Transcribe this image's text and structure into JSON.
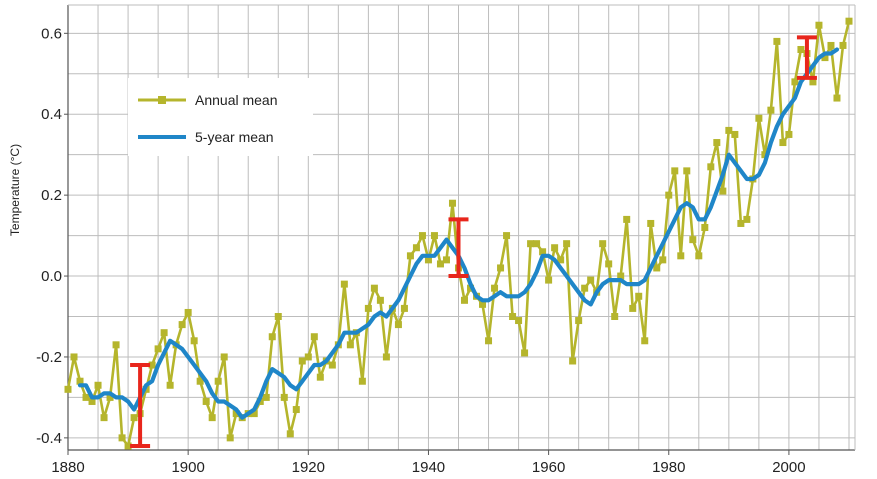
{
  "chart_data": {
    "type": "line",
    "title": "",
    "xlabel": "",
    "ylabel": "Temperature (°C)",
    "xlim": [
      1880,
      2011
    ],
    "ylim": [
      -0.43,
      0.67
    ],
    "grid": true,
    "legend_position": "upper-left",
    "xticks": [
      1880,
      1900,
      1920,
      1940,
      1960,
      1980,
      2000
    ],
    "xtick_labels": [
      "1880",
      "1900",
      "1920",
      "1940",
      "1960",
      "1980",
      "2000"
    ],
    "yticks": [
      -0.4,
      -0.2,
      0.0,
      0.2,
      0.4,
      0.6
    ],
    "ytick_labels": [
      "-0.4",
      "-0.2",
      "0.0",
      "0.2",
      "0.4",
      "0.6"
    ],
    "colors": {
      "annual": "#b5b52c",
      "five_year": "#1f86c8",
      "error_bar": "#e8261c",
      "grid": "#bdbdbd",
      "axis": "#555555"
    },
    "series": [
      {
        "name": "Annual mean",
        "marker": "square",
        "x": [
          1880,
          1881,
          1882,
          1883,
          1884,
          1885,
          1886,
          1887,
          1888,
          1889,
          1890,
          1891,
          1892,
          1893,
          1894,
          1895,
          1896,
          1897,
          1898,
          1899,
          1900,
          1901,
          1902,
          1903,
          1904,
          1905,
          1906,
          1907,
          1908,
          1909,
          1910,
          1911,
          1912,
          1913,
          1914,
          1915,
          1916,
          1917,
          1918,
          1919,
          1920,
          1921,
          1922,
          1923,
          1924,
          1925,
          1926,
          1927,
          1928,
          1929,
          1930,
          1931,
          1932,
          1933,
          1934,
          1935,
          1936,
          1937,
          1938,
          1939,
          1940,
          1941,
          1942,
          1943,
          1944,
          1945,
          1946,
          1947,
          1948,
          1949,
          1950,
          1951,
          1952,
          1953,
          1954,
          1955,
          1956,
          1957,
          1958,
          1959,
          1960,
          1961,
          1962,
          1963,
          1964,
          1965,
          1966,
          1967,
          1968,
          1969,
          1970,
          1971,
          1972,
          1973,
          1974,
          1975,
          1976,
          1977,
          1978,
          1979,
          1980,
          1981,
          1982,
          1983,
          1984,
          1985,
          1986,
          1987,
          1988,
          1989,
          1990,
          1991,
          1992,
          1993,
          1994,
          1995,
          1996,
          1997,
          1998,
          1999,
          2000,
          2001,
          2002,
          2003,
          2004,
          2005,
          2006,
          2007,
          2008,
          2009,
          2010
        ],
        "values": [
          -0.28,
          -0.2,
          -0.26,
          -0.3,
          -0.31,
          -0.27,
          -0.35,
          -0.3,
          -0.17,
          -0.4,
          -0.42,
          -0.35,
          -0.34,
          -0.28,
          -0.22,
          -0.18,
          -0.14,
          -0.27,
          -0.17,
          -0.12,
          -0.09,
          -0.16,
          -0.26,
          -0.31,
          -0.35,
          -0.26,
          -0.2,
          -0.4,
          -0.34,
          -0.35,
          -0.34,
          -0.34,
          -0.31,
          -0.3,
          -0.15,
          -0.1,
          -0.3,
          -0.39,
          -0.33,
          -0.21,
          -0.2,
          -0.15,
          -0.25,
          -0.21,
          -0.22,
          -0.17,
          -0.02,
          -0.17,
          -0.14,
          -0.26,
          -0.08,
          -0.03,
          -0.06,
          -0.2,
          -0.08,
          -0.12,
          -0.08,
          0.05,
          0.07,
          0.1,
          0.04,
          0.1,
          0.03,
          0.04,
          0.18,
          0.02,
          -0.06,
          -0.03,
          -0.05,
          -0.07,
          -0.16,
          -0.03,
          0.02,
          0.1,
          -0.1,
          -0.11,
          -0.19,
          0.08,
          0.08,
          0.06,
          -0.01,
          0.07,
          0.04,
          0.08,
          -0.21,
          -0.11,
          -0.03,
          -0.01,
          -0.04,
          0.08,
          0.03,
          -0.1,
          0.0,
          0.14,
          -0.08,
          -0.05,
          -0.16,
          0.13,
          0.02,
          0.04,
          0.2,
          0.26,
          0.05,
          0.26,
          0.09,
          0.05,
          0.12,
          0.27,
          0.33,
          0.21,
          0.36,
          0.35,
          0.13,
          0.14,
          0.24,
          0.39,
          0.3,
          0.41,
          0.58,
          0.33,
          0.35,
          0.48,
          0.56,
          0.55,
          0.48,
          0.62,
          0.54,
          0.57,
          0.44,
          0.57,
          0.63
        ]
      },
      {
        "name": "5-year mean",
        "x": [
          1882,
          1883,
          1884,
          1885,
          1886,
          1887,
          1888,
          1889,
          1890,
          1891,
          1892,
          1893,
          1894,
          1895,
          1896,
          1897,
          1898,
          1899,
          1900,
          1901,
          1902,
          1903,
          1904,
          1905,
          1906,
          1907,
          1908,
          1909,
          1910,
          1911,
          1912,
          1913,
          1914,
          1915,
          1916,
          1917,
          1918,
          1919,
          1920,
          1921,
          1922,
          1923,
          1924,
          1925,
          1926,
          1927,
          1928,
          1929,
          1930,
          1931,
          1932,
          1933,
          1934,
          1935,
          1936,
          1937,
          1938,
          1939,
          1940,
          1941,
          1942,
          1943,
          1944,
          1945,
          1946,
          1947,
          1948,
          1949,
          1950,
          1951,
          1952,
          1953,
          1954,
          1955,
          1956,
          1957,
          1958,
          1959,
          1960,
          1961,
          1962,
          1963,
          1964,
          1965,
          1966,
          1967,
          1968,
          1969,
          1970,
          1971,
          1972,
          1973,
          1974,
          1975,
          1976,
          1977,
          1978,
          1979,
          1980,
          1981,
          1982,
          1983,
          1984,
          1985,
          1986,
          1987,
          1988,
          1989,
          1990,
          1991,
          1992,
          1993,
          1994,
          1995,
          1996,
          1997,
          1998,
          1999,
          2000,
          2001,
          2002,
          2003,
          2004,
          2005,
          2006,
          2007,
          2008
        ],
        "values": [
          -0.27,
          -0.27,
          -0.3,
          -0.3,
          -0.29,
          -0.29,
          -0.3,
          -0.3,
          -0.31,
          -0.33,
          -0.3,
          -0.27,
          -0.26,
          -0.22,
          -0.19,
          -0.16,
          -0.17,
          -0.18,
          -0.2,
          -0.22,
          -0.24,
          -0.26,
          -0.29,
          -0.31,
          -0.31,
          -0.32,
          -0.33,
          -0.35,
          -0.34,
          -0.33,
          -0.3,
          -0.26,
          -0.23,
          -0.24,
          -0.25,
          -0.27,
          -0.28,
          -0.26,
          -0.24,
          -0.22,
          -0.22,
          -0.21,
          -0.19,
          -0.17,
          -0.14,
          -0.14,
          -0.14,
          -0.13,
          -0.12,
          -0.1,
          -0.09,
          -0.1,
          -0.08,
          -0.06,
          -0.03,
          0.0,
          0.03,
          0.05,
          0.05,
          0.05,
          0.07,
          0.09,
          0.07,
          0.05,
          0.02,
          -0.02,
          -0.05,
          -0.06,
          -0.06,
          -0.05,
          -0.04,
          -0.05,
          -0.05,
          -0.05,
          -0.04,
          -0.02,
          0.01,
          0.05,
          0.05,
          0.04,
          0.02,
          0.0,
          -0.02,
          -0.04,
          -0.06,
          -0.07,
          -0.04,
          -0.02,
          -0.01,
          -0.01,
          -0.01,
          -0.02,
          -0.02,
          -0.02,
          -0.01,
          0.02,
          0.05,
          0.08,
          0.11,
          0.14,
          0.17,
          0.18,
          0.17,
          0.14,
          0.14,
          0.17,
          0.21,
          0.25,
          0.3,
          0.28,
          0.26,
          0.24,
          0.24,
          0.25,
          0.28,
          0.33,
          0.37,
          0.4,
          0.42,
          0.44,
          0.48,
          0.5,
          0.52,
          0.54,
          0.55,
          0.55,
          0.56
        ]
      }
    ],
    "error_bars": [
      {
        "x": 1892,
        "low": -0.42,
        "high": -0.22
      },
      {
        "x": 1945,
        "low": 0.0,
        "high": 0.14
      },
      {
        "x": 2003,
        "low": 0.49,
        "high": 0.59
      }
    ]
  }
}
